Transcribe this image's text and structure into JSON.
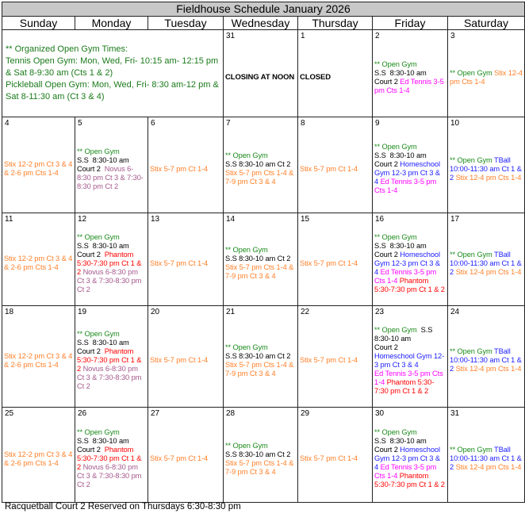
{
  "title": "Fieldhouse Schedule January 2026",
  "days_of_week": [
    "Sunday",
    "Monday",
    "Tuesday",
    "Wednesday",
    "Thursday",
    "Friday",
    "Saturday"
  ],
  "colors": {
    "open_gym": "#1a8a1a",
    "stix": "#ff7f27",
    "ed_tennis": "#ff00ff",
    "homeschool": "#1c1cff",
    "phantom": "#ff0000",
    "novus": "#a4588c",
    "text": "#000000",
    "header_bg": "#c8c8c8"
  },
  "notice": {
    "lines": [
      "** Organized Open Gym Times:",
      "Tennis Open Gym: Mon, Wed, Fri- 10:15 am- 12:15 pm & Sat 8-9:30 am (Cts 1 & 2)",
      "Pickleball Open Gym: Mon, Wed, Fri- 8:30 am-12 pm & Sat 8-11:30 am (Ct 3 & 4)"
    ]
  },
  "weeks": [
    [
      {
        "day": "31",
        "bold": true,
        "lines": [
          [
            {
              "t": "CLOSING AT NOON",
              "c": "text"
            }
          ]
        ]
      },
      {
        "day": "1",
        "bold": true,
        "lines": [
          [
            {
              "t": "CLOSED",
              "c": "text"
            }
          ]
        ]
      },
      {
        "day": "2",
        "lines": [
          [
            {
              "t": "** Open Gym",
              "c": "open_gym"
            }
          ],
          [
            {
              "t": "S.S  8:30-10 am",
              "c": "text"
            }
          ],
          [
            {
              "t": "Court 2 ",
              "c": "text"
            },
            {
              "t": "Ed Tennis 3-5 pm Cts 1-4",
              "c": "ed_tennis"
            }
          ]
        ]
      },
      {
        "day": "3",
        "lines": [
          [
            {
              "t": "** Open Gym ",
              "c": "open_gym"
            },
            {
              "t": "Stix 12-4 pm Cts 1-4",
              "c": "stix"
            }
          ]
        ]
      }
    ],
    [
      {
        "day": "4",
        "lines": [
          [
            {
              "t": "Stix 12-2 pm Ct 3 & 4 & 2-6 pm Cts 1-4",
              "c": "stix"
            }
          ]
        ]
      },
      {
        "day": "5",
        "lines": [
          [
            {
              "t": "** Open Gym",
              "c": "open_gym"
            }
          ],
          [
            {
              "t": "S.S  8:30-10 am",
              "c": "text"
            }
          ],
          [
            {
              "t": "Court 2  ",
              "c": "text"
            },
            {
              "t": "Novus 6-8:30 pm Ct 3 & 7:30-8:30 pm Ct 2",
              "c": "novus"
            }
          ]
        ]
      },
      {
        "day": "6",
        "lines": [
          [
            {
              "t": "Stix 5-7 pm Ct 1-4",
              "c": "stix"
            }
          ]
        ]
      },
      {
        "day": "7",
        "lines": [
          [
            {
              "t": "** Open Gym",
              "c": "open_gym"
            }
          ],
          [
            {
              "t": "S.S 8:30-10 am Ct 2",
              "c": "text"
            }
          ],
          [
            {
              "t": "Stix 5-7 pm Cts 1-4 & 7-9 pm Ct 3 & 4",
              "c": "stix"
            }
          ]
        ]
      },
      {
        "day": "8",
        "lines": [
          [
            {
              "t": "Stix 5-7 pm Ct 1-4",
              "c": "stix"
            }
          ]
        ]
      },
      {
        "day": "9",
        "lines": [
          [
            {
              "t": "** Open Gym",
              "c": "open_gym"
            }
          ],
          [
            {
              "t": "S.S  8:30-10 am",
              "c": "text"
            }
          ],
          [
            {
              "t": "Court 2 ",
              "c": "text"
            },
            {
              "t": "Homeschool Gym 12-3 pm Ct 3 & 4 ",
              "c": "homeschool"
            },
            {
              "t": "Ed Tennis 3-5 pm Cts 1-4",
              "c": "ed_tennis"
            }
          ]
        ]
      },
      {
        "day": "10",
        "lines": [
          [
            {
              "t": "** Open Gym ",
              "c": "open_gym"
            },
            {
              "t": "TBall 10:00-11:30 am Ct 1 & 2 ",
              "c": "homeschool"
            },
            {
              "t": "Stix 12-4 pm Cts 1-4",
              "c": "stix"
            }
          ]
        ]
      }
    ],
    [
      {
        "day": "11",
        "lines": [
          [
            {
              "t": "Stix 12-2 pm Ct 3 & 4 & 2-6 pm Cts 1-4",
              "c": "stix"
            }
          ]
        ]
      },
      {
        "day": "12",
        "lines": [
          [
            {
              "t": "** Open Gym",
              "c": "open_gym"
            }
          ],
          [
            {
              "t": "S.S  8:30-10 am",
              "c": "text"
            }
          ],
          [
            {
              "t": "Court 2  ",
              "c": "text"
            },
            {
              "t": "Phantom 5:30-7:30 pm Ct 1 & 2 ",
              "c": "phantom"
            },
            {
              "t": "Novus 6-8:30 pm Ct 3 & 7:30-8:30 pm Ct 2",
              "c": "novus"
            }
          ]
        ]
      },
      {
        "day": "13",
        "lines": [
          [
            {
              "t": "Stix 5-7 pm Ct 1-4",
              "c": "stix"
            }
          ]
        ]
      },
      {
        "day": "14",
        "lines": [
          [
            {
              "t": "** Open Gym",
              "c": "open_gym"
            }
          ],
          [
            {
              "t": "S.S 8:30-10 am Ct 2",
              "c": "text"
            }
          ],
          [
            {
              "t": "Stix 5-7 pm Cts 1-4 & 7-9 pm Ct 3 & 4",
              "c": "stix"
            }
          ]
        ]
      },
      {
        "day": "15",
        "lines": [
          [
            {
              "t": "Stix 5-7 pm Ct 1-4",
              "c": "stix"
            }
          ]
        ]
      },
      {
        "day": "16",
        "lines": [
          [
            {
              "t": "** Open Gym",
              "c": "open_gym"
            }
          ],
          [
            {
              "t": "S.S  8:30-10 am",
              "c": "text"
            }
          ],
          [
            {
              "t": "Court 2 ",
              "c": "text"
            },
            {
              "t": "Homeschool Gym 12-3 pm Ct 3 & 4 ",
              "c": "homeschool"
            },
            {
              "t": "Ed Tennis 3-5 pm Cts 1-4 ",
              "c": "ed_tennis"
            },
            {
              "t": "Phantom 5:30-7:30 pm Ct 1 & 2",
              "c": "phantom"
            }
          ]
        ]
      },
      {
        "day": "17",
        "lines": [
          [
            {
              "t": "** Open Gym ",
              "c": "open_gym"
            },
            {
              "t": "TBall 10:00-11:30 am Ct 1 & 2 ",
              "c": "homeschool"
            },
            {
              "t": "Stix 12-4 pm Cts 1-4",
              "c": "stix"
            }
          ]
        ]
      }
    ],
    [
      {
        "day": "18",
        "lines": [
          [
            {
              "t": "Stix 12-2 pm Ct 3 & 4 & 2-6 pm Cts 1-4",
              "c": "stix"
            }
          ]
        ]
      },
      {
        "day": "19",
        "lines": [
          [
            {
              "t": "** Open Gym",
              "c": "open_gym"
            }
          ],
          [
            {
              "t": "S.S  8:30-10 am",
              "c": "text"
            }
          ],
          [
            {
              "t": "Court 2  ",
              "c": "text"
            },
            {
              "t": "Phantom 5:30-7:30 pm Ct 1 & 2 ",
              "c": "phantom"
            },
            {
              "t": "Novus 6-8:30 pm Ct 3 & 7:30-8:30 pm Ct 2",
              "c": "novus"
            }
          ]
        ]
      },
      {
        "day": "20",
        "lines": [
          [
            {
              "t": "Stix 5-7 pm Ct 1-4",
              "c": "stix"
            }
          ]
        ]
      },
      {
        "day": "21",
        "lines": [
          [
            {
              "t": "** Open Gym",
              "c": "open_gym"
            }
          ],
          [
            {
              "t": "S.S 8:30-10 am Ct 2",
              "c": "text"
            }
          ],
          [
            {
              "t": "Stix 5-7 pm Cts 1-4 & 7-9 pm Ct 3 & 4",
              "c": "stix"
            }
          ]
        ]
      },
      {
        "day": "22",
        "lines": [
          [
            {
              "t": "Stix 5-7 pm Ct 1-4",
              "c": "stix"
            }
          ]
        ]
      },
      {
        "day": "23",
        "lines": [
          [
            {
              "t": "** Open Gym  ",
              "c": "open_gym"
            },
            {
              "t": "S.S 8:30-10 am",
              "c": "text"
            }
          ],
          [
            {
              "t": "Court 2",
              "c": "text"
            }
          ],
          [
            {
              "t": "Homeschool Gym 12-3 pm Ct 3 & 4",
              "c": "homeschool"
            }
          ],
          [
            {
              "t": "Ed Tennis 3-5 pm Cts 1-4 ",
              "c": "ed_tennis"
            },
            {
              "t": "Phantom 5:30-7:30 pm Ct 1 & 2",
              "c": "phantom"
            }
          ]
        ]
      },
      {
        "day": "24",
        "lines": [
          [
            {
              "t": "** Open Gym ",
              "c": "open_gym"
            },
            {
              "t": "TBall 10:00-11:30 am Ct 1 & 2 ",
              "c": "homeschool"
            },
            {
              "t": "Stix 12-4 pm Cts 1-4",
              "c": "stix"
            }
          ]
        ]
      }
    ],
    [
      {
        "day": "25",
        "lines": [
          [
            {
              "t": "Stix 12-2 pm Ct 3 & 4 & 2-6 pm Cts 1-4",
              "c": "stix"
            }
          ]
        ]
      },
      {
        "day": "26",
        "lines": [
          [
            {
              "t": "** Open Gym",
              "c": "open_gym"
            }
          ],
          [
            {
              "t": "S.S  8:30-10 am",
              "c": "text"
            }
          ],
          [
            {
              "t": "Court 2  ",
              "c": "text"
            },
            {
              "t": "Phantom 5:30-7:30 pm Ct 1 & 2 ",
              "c": "phantom"
            },
            {
              "t": "Novus 6-8:30 pm Ct 3 & 7:30-8:30 pm Ct 2",
              "c": "novus"
            }
          ]
        ]
      },
      {
        "day": "27",
        "lines": [
          [
            {
              "t": "Stix 5-7 pm Ct 1-4",
              "c": "stix"
            }
          ]
        ]
      },
      {
        "day": "28",
        "lines": [
          [
            {
              "t": "** Open Gym",
              "c": "open_gym"
            }
          ],
          [
            {
              "t": "S.S 8:30-10 am Ct 2",
              "c": "text"
            }
          ],
          [
            {
              "t": "Stix 5-7 pm Cts 1-4 & 7-9 pm Ct 3 & 4",
              "c": "stix"
            }
          ]
        ]
      },
      {
        "day": "29",
        "lines": [
          [
            {
              "t": "Stix 5-7 pm Ct 1-4",
              "c": "stix"
            }
          ]
        ]
      },
      {
        "day": "30",
        "lines": [
          [
            {
              "t": "** Open Gym",
              "c": "open_gym"
            }
          ],
          [
            {
              "t": "S.S  8:30-10 am",
              "c": "text"
            }
          ],
          [
            {
              "t": "Court 2 ",
              "c": "text"
            },
            {
              "t": "Homeschool Gym 12-3 pm Ct 3 & 4 ",
              "c": "homeschool"
            },
            {
              "t": "Ed Tennis 3-5 pm Cts 1-4 ",
              "c": "ed_tennis"
            },
            {
              "t": "Phantom 5:30-7:30 pm Ct 1 & 2",
              "c": "phantom"
            }
          ]
        ]
      },
      {
        "day": "31",
        "lines": [
          [
            {
              "t": "** Open Gym ",
              "c": "open_gym"
            },
            {
              "t": "TBall 10:00-11:30 am Ct 1 & 2 ",
              "c": "homeschool"
            },
            {
              "t": "Stix 12-4 pm Cts 1-4",
              "c": "stix"
            }
          ]
        ]
      }
    ]
  ],
  "footer": "Racquetball Court 2 Reserved on Thursdays 6:30-8:30 pm"
}
